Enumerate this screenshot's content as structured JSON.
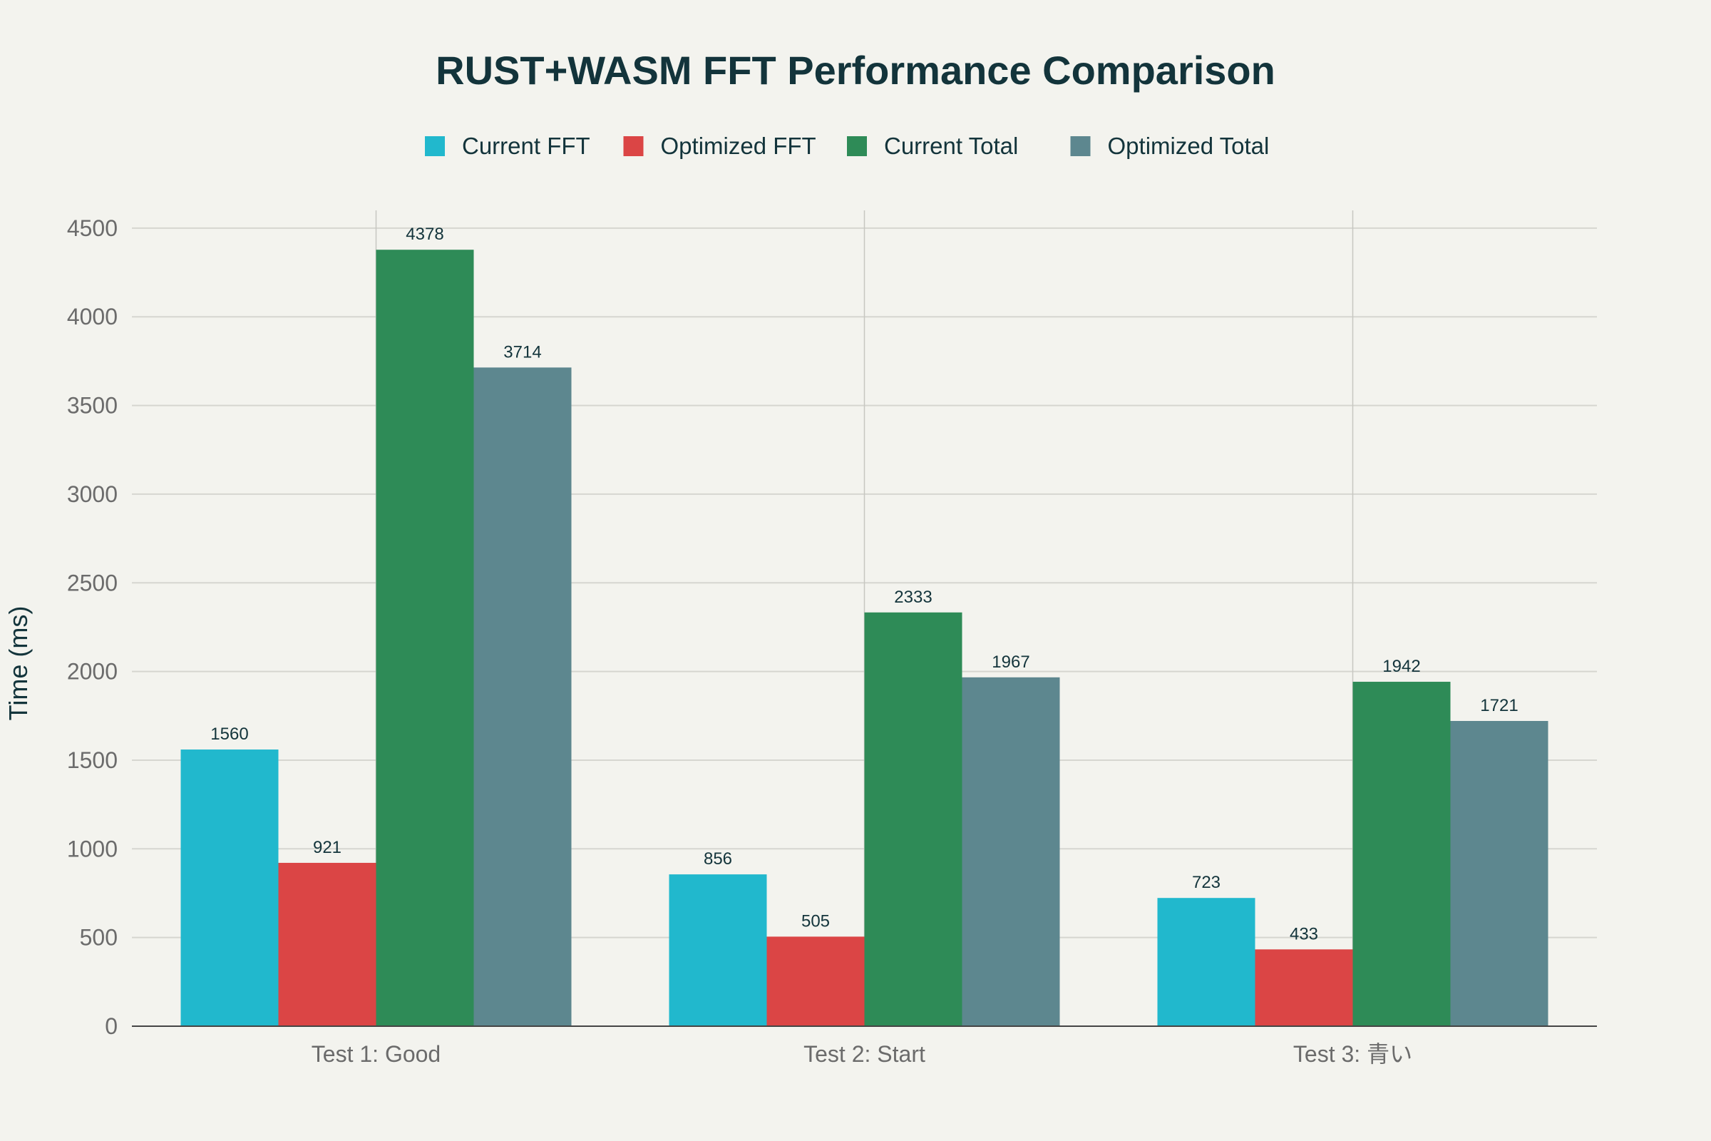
{
  "chart_data": {
    "type": "bar",
    "title": "RUST+WASM FFT Performance Comparison",
    "xlabel": "",
    "ylabel": "Time (ms)",
    "categories": [
      "Test 1: Good",
      "Test 2: Start",
      "Test 3: 青い"
    ],
    "series": [
      {
        "name": "Current FFT",
        "color": "#21b8cd",
        "values": [
          1560,
          856,
          723
        ]
      },
      {
        "name": "Optimized FFT",
        "color": "#db4545",
        "values": [
          921,
          505,
          433
        ]
      },
      {
        "name": "Current Total",
        "color": "#2e8b57",
        "values": [
          4378,
          2333,
          1942
        ]
      },
      {
        "name": "Optimized Total",
        "color": "#5d878f",
        "values": [
          3714,
          1967,
          1721
        ]
      }
    ],
    "ylim": [
      0,
      4600
    ],
    "yticks": [
      0,
      500,
      1000,
      1500,
      2000,
      2500,
      3000,
      3500,
      4000,
      4500
    ],
    "grid": true,
    "legend_position": "top-center",
    "data_labels": true
  }
}
